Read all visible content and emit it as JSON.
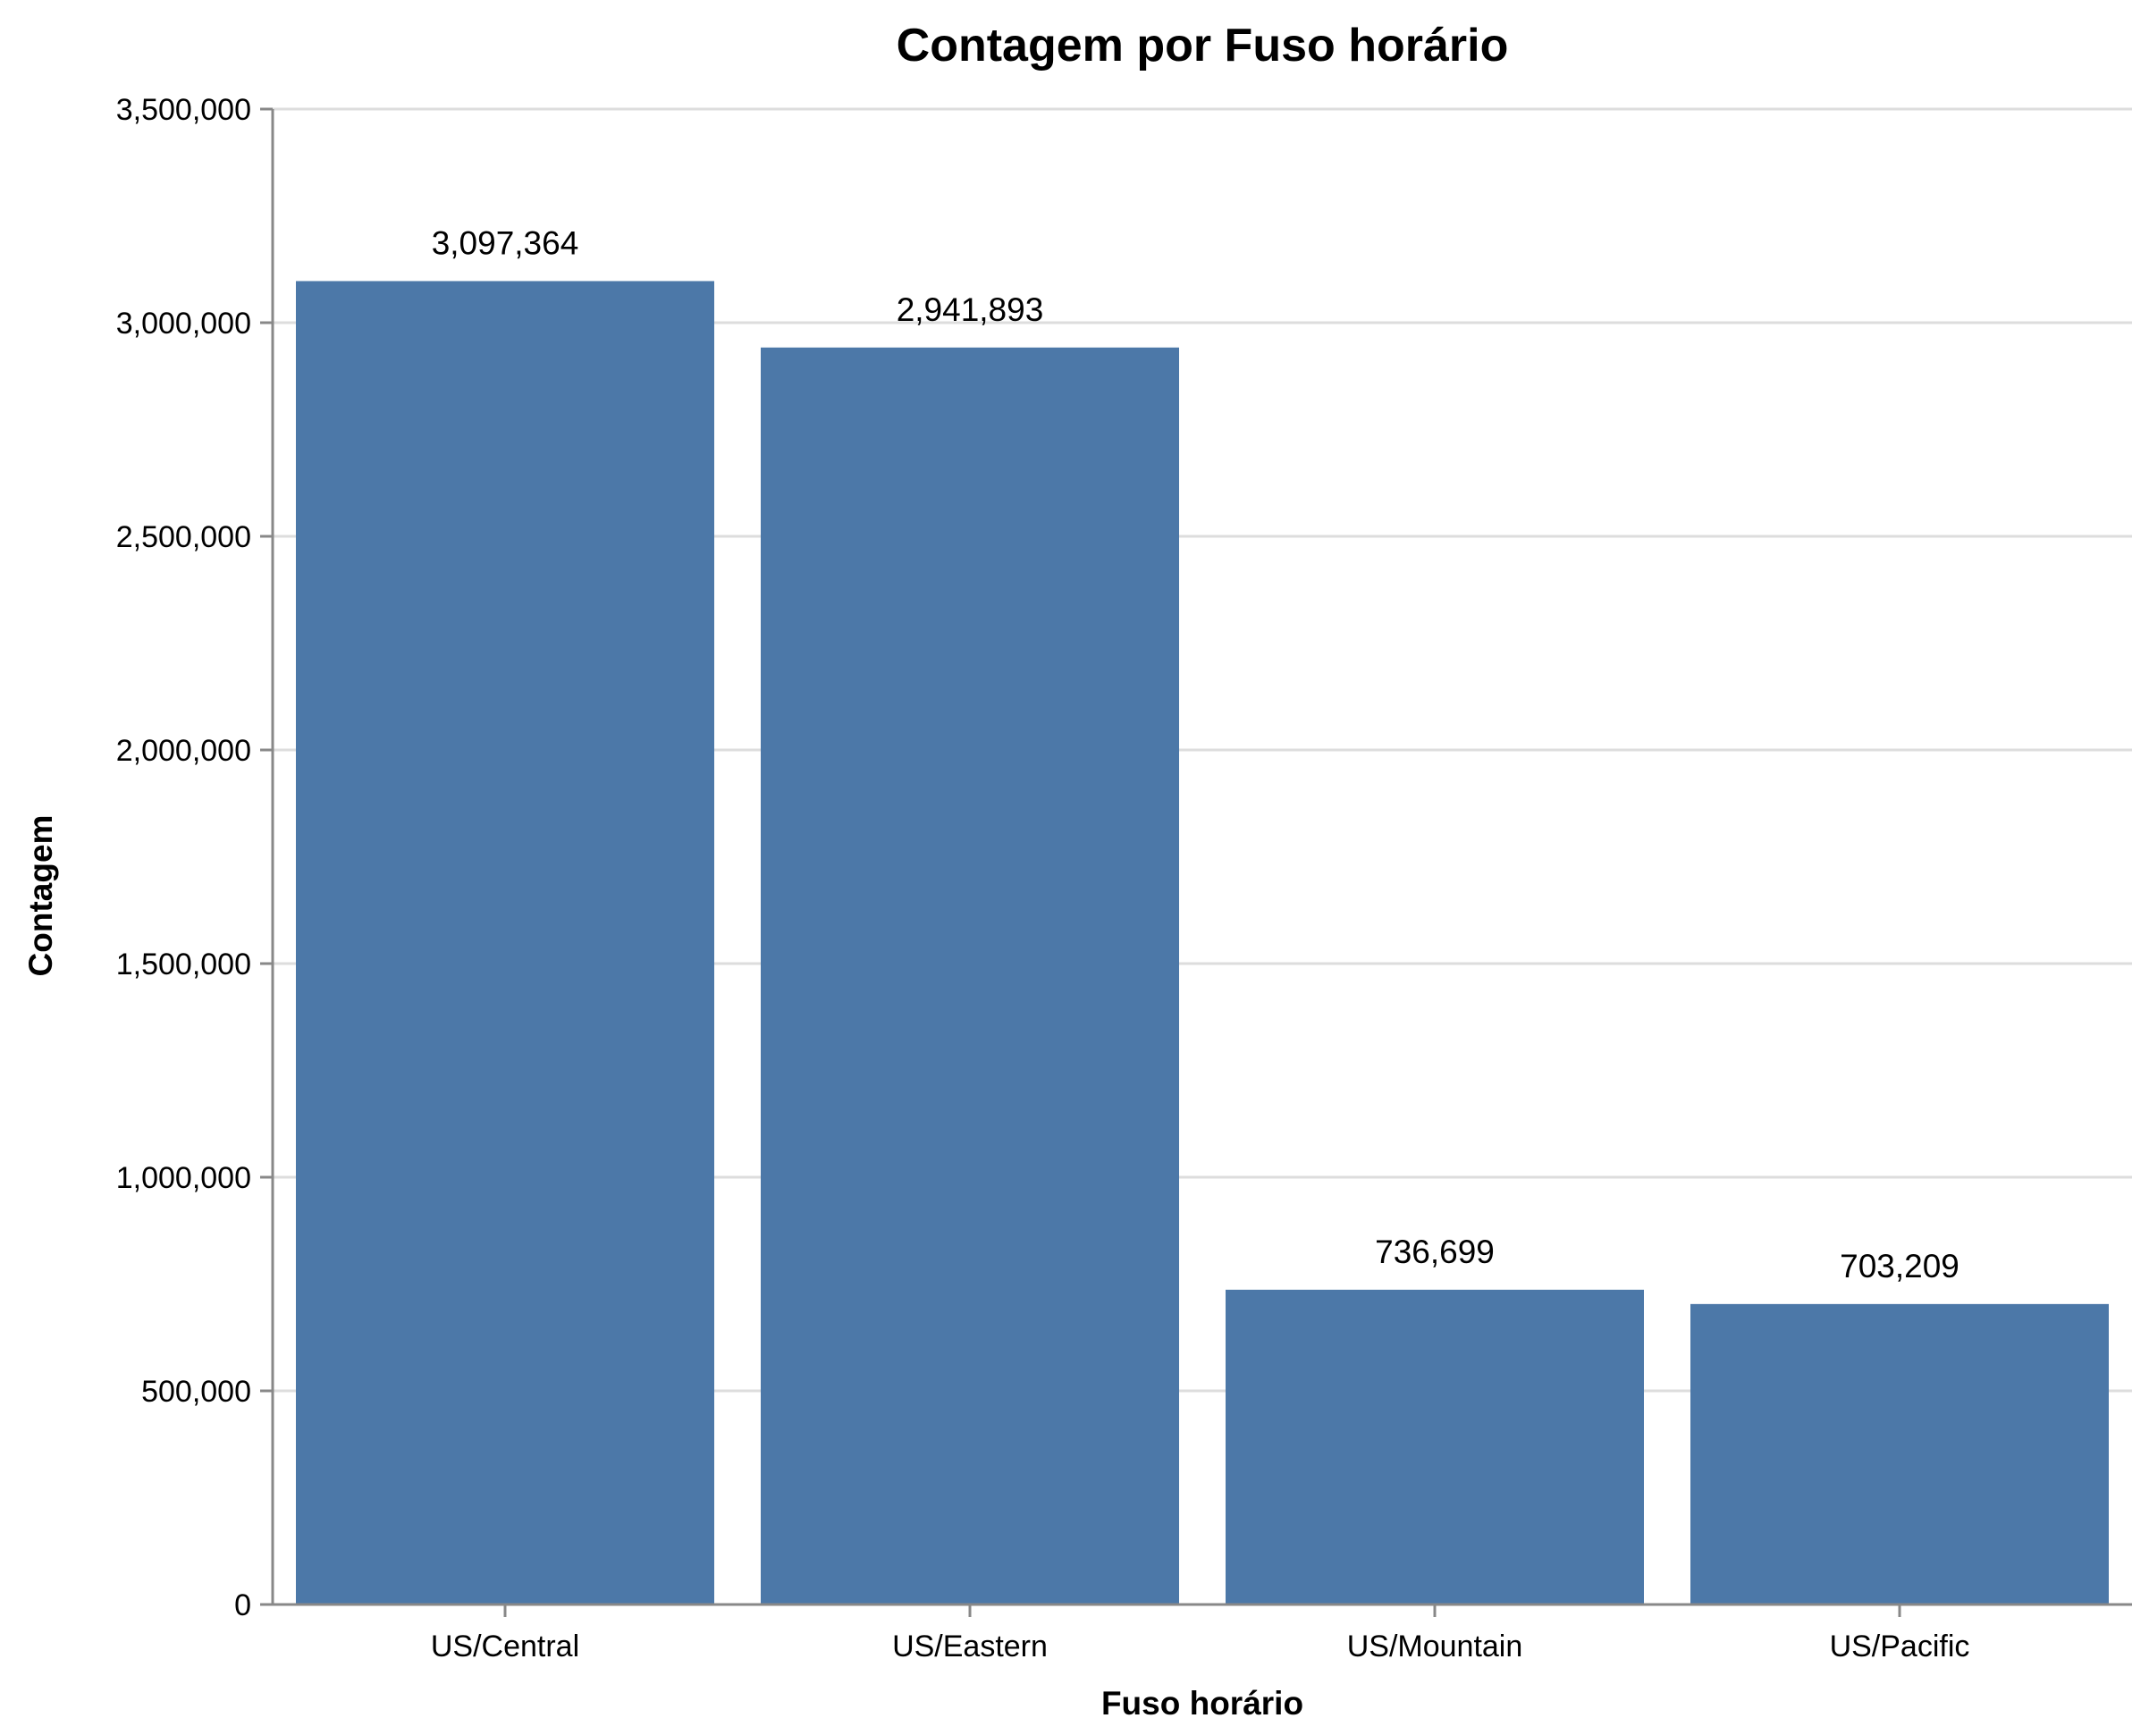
{
  "chart_data": {
    "type": "bar",
    "title": "Contagem por Fuso horário",
    "xlabel": "Fuso horário",
    "ylabel": "Contagem",
    "categories": [
      "US/Central",
      "US/Eastern",
      "US/Mountain",
      "US/Pacific"
    ],
    "values": [
      3097364,
      2941893,
      736699,
      703209
    ],
    "value_labels": [
      "3,097,364",
      "2,941,893",
      "736,699",
      "703,209"
    ],
    "ylim": [
      0,
      3500000
    ],
    "yticks": [
      0,
      500000,
      1000000,
      1500000,
      2000000,
      2500000,
      3000000,
      3500000
    ],
    "ytick_labels": [
      "0",
      "500,000",
      "1,000,000",
      "1,500,000",
      "2,000,000",
      "2,500,000",
      "3,000,000",
      "3,500,000"
    ],
    "grid": true,
    "legend": "none",
    "colors": {
      "bar": "#4c78a8",
      "grid": "#dddddd",
      "axis": "#888888"
    }
  }
}
